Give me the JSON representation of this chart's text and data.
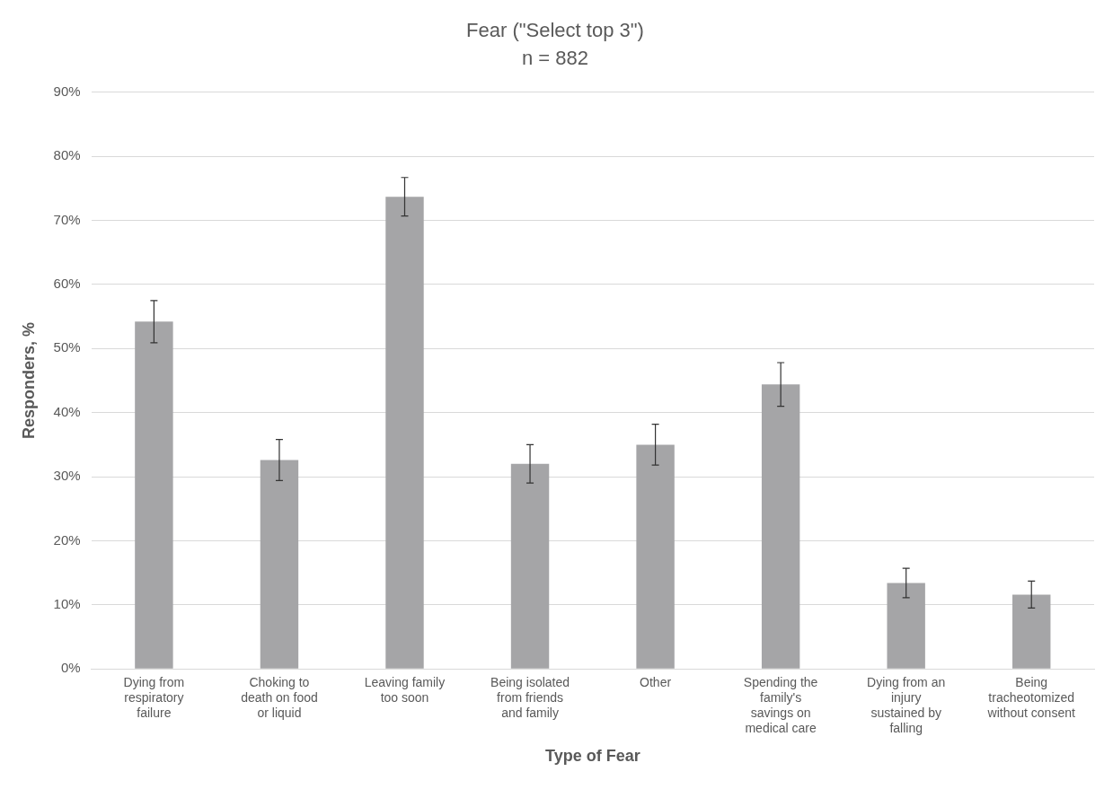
{
  "chart_data": {
    "type": "bar",
    "title": "Fear (\"Select top 3\")",
    "subtitle": "n = 882",
    "xlabel": "Type of Fear",
    "ylabel": "Responders, %",
    "categories": [
      "Dying from respiratory failure",
      "Choking to death on food or liquid",
      "Leaving family too soon",
      "Being isolated from friends and family",
      "Other",
      "Spending the family's savings on medical care",
      "Dying from an injury sustained by falling",
      "Being tracheotomized without consent"
    ],
    "values": [
      54.2,
      32.6,
      73.7,
      32.0,
      35.0,
      44.4,
      13.4,
      11.6
    ],
    "errors": [
      3.3,
      3.2,
      3.0,
      3.0,
      3.2,
      3.4,
      2.3,
      2.1
    ],
    "color": "#a5a5a7",
    "ylim": [
      0,
      90
    ],
    "yticks": [
      {
        "value": 0,
        "label": "0%"
      },
      {
        "value": 10,
        "label": "10%"
      },
      {
        "value": 20,
        "label": "20%"
      },
      {
        "value": 30,
        "label": "30%"
      },
      {
        "value": 40,
        "label": "40%"
      },
      {
        "value": 50,
        "label": "50%"
      },
      {
        "value": 60,
        "label": "60%"
      },
      {
        "value": 70,
        "label": "70%"
      },
      {
        "value": 80,
        "label": "80%"
      },
      {
        "value": 90,
        "label": "90%"
      }
    ],
    "grid": "y",
    "legend": false
  }
}
